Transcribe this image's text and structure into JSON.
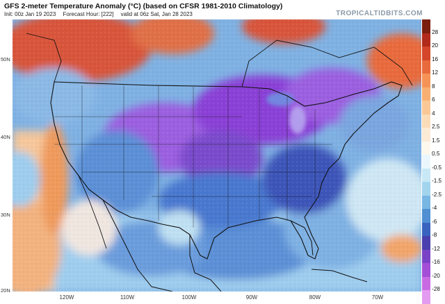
{
  "header": {
    "title": "GFS 2-meter Temperature Anomaly (°C) (based on CFSR 1981-2010 Climatology)",
    "init": "Init: 00z Jan 19 2023",
    "forecast_hour": "Forecast Hour: [222]",
    "valid": "valid at 06z Sat, Jan 28 2023",
    "brand": "TROPICALTIDBITS.COM"
  },
  "axes": {
    "lat_labels": [
      "50N",
      "40N",
      "30N",
      "20N"
    ],
    "lon_labels": [
      "120W",
      "110W",
      "100W",
      "90W",
      "80W",
      "70W"
    ]
  },
  "colorbar": {
    "labels": [
      "28",
      "20",
      "16",
      "12",
      "8",
      "6",
      "4",
      "2.5",
      "1.5",
      "0.5",
      "-0.5",
      "-1.5",
      "-2.5",
      "-4",
      "-6",
      "-8",
      "-12",
      "-16",
      "-20",
      "-28"
    ],
    "colors": [
      "#7a1f0f",
      "#b22a1a",
      "#d4452a",
      "#e86a3c",
      "#f59356",
      "#f8b072",
      "#fac896",
      "#fbdcb8",
      "#fbead6",
      "#fdf7ee",
      "#eaf6fb",
      "#c8e8f5",
      "#a2d4ee",
      "#78b6e3",
      "#4f8fd2",
      "#3a63c0",
      "#4a3fae",
      "#7a43c7",
      "#a44ed8",
      "#c86be3",
      "#e39cf0"
    ]
  },
  "map": {
    "colors": {
      "deep_purple": "#8a3fd6",
      "purple": "#9b5ee0",
      "dark_blue": "#3d55b8",
      "blue": "#4a78cf",
      "light_blue": "#7fb1e3",
      "pale_blue": "#bfe0f2",
      "near_zero": "#f3efe8",
      "peach": "#f6c79b",
      "orange": "#ef9a5c",
      "red": "#d8553a",
      "dark_red": "#b9342a",
      "land_outline": "#111111"
    }
  }
}
